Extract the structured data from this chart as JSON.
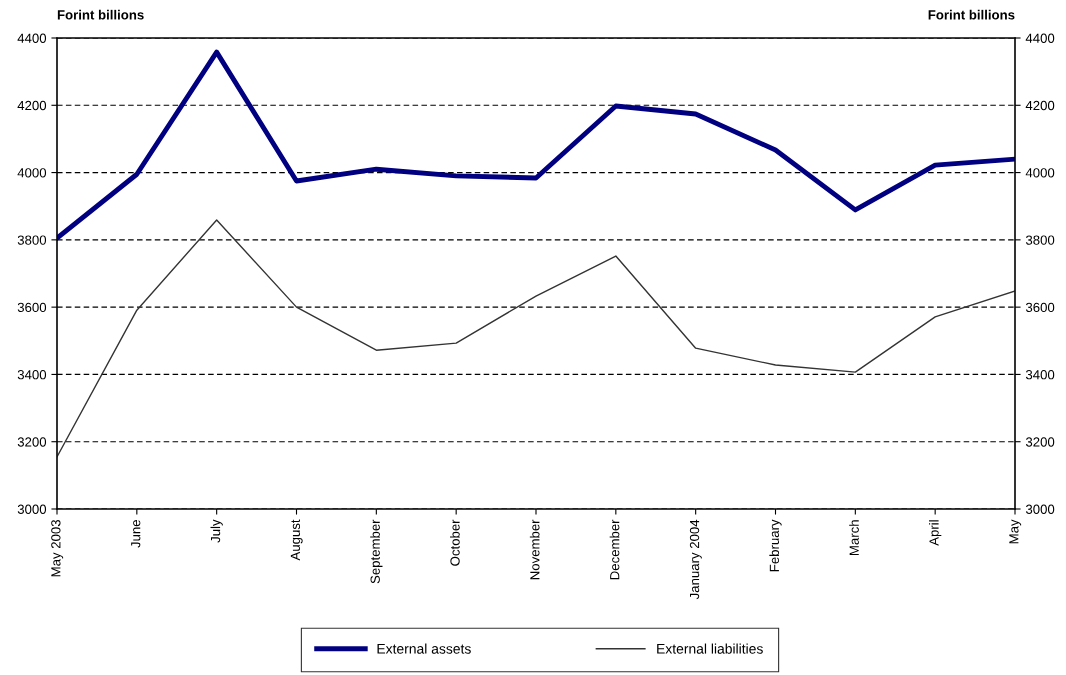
{
  "chart_data": {
    "type": "line",
    "ylabel": "Forint billions",
    "y2label": "Forint billions",
    "categories": [
      "May 2003",
      "June",
      "July",
      "August",
      "September",
      "October",
      "November",
      "December",
      "January 2004",
      "February",
      "March",
      "April",
      "May"
    ],
    "series": [
      {
        "name": "External assets",
        "color": "#000080",
        "values": [
          3805,
          3995,
          4358,
          3975,
          4010,
          3990,
          3984,
          4198,
          4174,
          4067,
          3889,
          4022,
          4040
        ]
      },
      {
        "name": "External liabilities",
        "color": "#333333",
        "values": [
          3155,
          3591,
          3859,
          3600,
          3472,
          3493,
          3633,
          3752,
          3478,
          3428,
          3407,
          3571,
          3648
        ]
      }
    ],
    "ylim": [
      3000,
      4400
    ],
    "yticks": [
      3000,
      3200,
      3400,
      3600,
      3800,
      4000,
      4200,
      4400
    ],
    "y2lim": [
      3000,
      4400
    ],
    "y2ticks": [
      3000,
      3200,
      3400,
      3600,
      3800,
      4000,
      4200,
      4400
    ],
    "grid": "y",
    "line_style": "solid",
    "marker": "none",
    "legend": "bottom"
  }
}
